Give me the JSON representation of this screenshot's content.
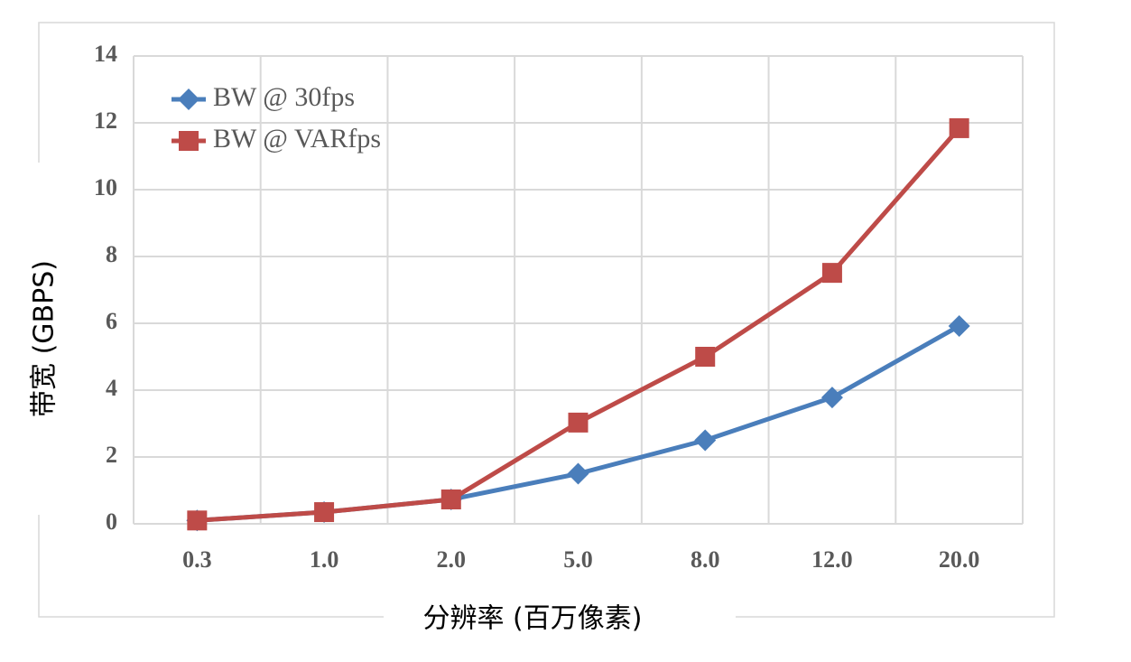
{
  "chart_data": {
    "type": "line",
    "x_label": "分辨率 (百万像素)",
    "y_label": "带宽 (GBPS)",
    "categories": [
      "0.3",
      "1.0",
      "2.0",
      "5.0",
      "8.0",
      "12.0",
      "20.0"
    ],
    "series": [
      {
        "name": "BW @ 30fps",
        "color": "#4a7ebb",
        "marker": "diamond",
        "values": [
          0.1,
          0.35,
          0.73,
          1.5,
          2.5,
          3.78,
          5.92
        ]
      },
      {
        "name": "BW @ VARfps",
        "color": "#be4b48",
        "marker": "square",
        "values": [
          0.1,
          0.35,
          0.73,
          3.03,
          5.0,
          7.51,
          11.84
        ]
      }
    ],
    "ylim": [
      0,
      14
    ],
    "yticks": [
      0,
      2,
      4,
      6,
      8,
      10,
      12,
      14
    ],
    "grid": true,
    "legend": "upper left"
  }
}
